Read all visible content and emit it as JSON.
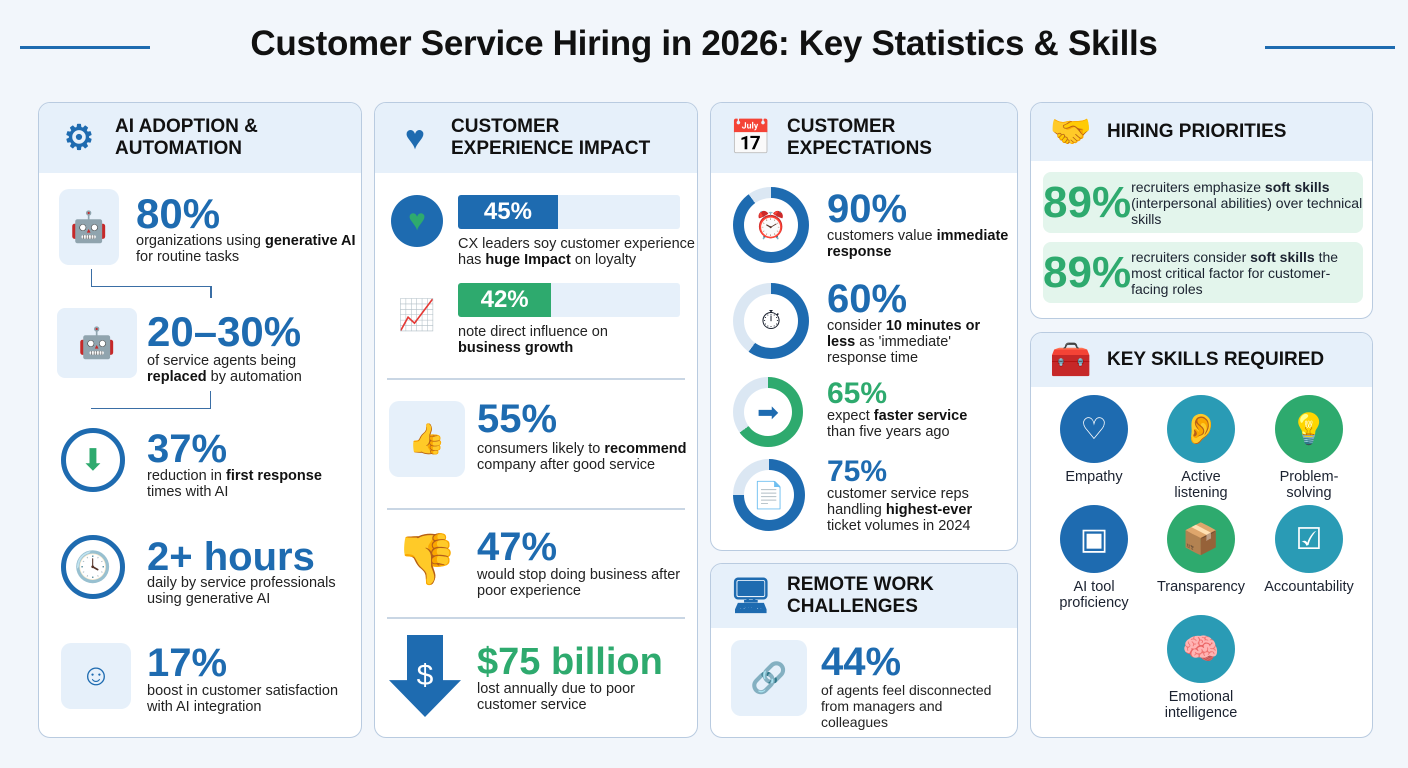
{
  "title": "Customer Service Hiring in 2026: Key Statistics & Skills",
  "colors": {
    "blue": "#1e6bb0",
    "green": "#2eaa6e",
    "header_bg": "#e6f0fa",
    "page_bg": "#f2f6fb"
  },
  "ai": {
    "heading_1": "AI ADOPTION &",
    "heading_2": "AUTOMATION",
    "icon": "brain-gear-icon",
    "stats": [
      {
        "value": "80%",
        "desc": [
          {
            "t": "organizations using "
          },
          {
            "t": "generative AI",
            "b": 1
          },
          {
            "t": " for routine tasks"
          }
        ],
        "icon": "robot-icon"
      },
      {
        "value": "20–30%",
        "desc": [
          {
            "t": "of service agents being "
          },
          {
            "t": "replaced",
            "b": 1
          },
          {
            "t": " by automation"
          }
        ],
        "icon": "robot-vs-agent-icon"
      },
      {
        "value": "37%",
        "desc": [
          {
            "t": "reduction in "
          },
          {
            "t": "first response",
            "b": 1
          },
          {
            "t": " times with AI"
          }
        ],
        "icon": "clock-down-icon"
      },
      {
        "value": "2+ hours",
        "desc": [
          {
            "t": "daily by service professionals using generative AI"
          }
        ],
        "icon": "clock-icon",
        "badge": "2+"
      },
      {
        "value": "17%",
        "desc": [
          {
            "t": "boost in customer satisfaction with AI integration"
          }
        ],
        "icon": "happy-customer-icon"
      }
    ]
  },
  "cx": {
    "heading_1": "CUSTOMER",
    "heading_2": "EXPERIENCE IMPACT",
    "icon": "heart-trend-icon",
    "bars": [
      {
        "value": "45%",
        "percent": 45,
        "color": "#1e6bb0",
        "desc": [
          {
            "t": "CX leaders soy customer experience has "
          },
          {
            "t": "huge Impact",
            "b": 1
          },
          {
            "t": " on loyalty"
          }
        ],
        "icon": "award-heart-icon"
      },
      {
        "value": "42%",
        "percent": 42,
        "color": "#2eaa6e",
        "desc": [
          {
            "t": "note direct influence on "
          },
          {
            "t": "business growth",
            "b": 1
          }
        ],
        "icon": "growth-chart-icon"
      }
    ],
    "stats": [
      {
        "value": "55%",
        "desc": [
          {
            "t": "consumers likely to "
          },
          {
            "t": "recommend",
            "b": 1
          },
          {
            "t": " company after good service"
          }
        ],
        "icon": "thumbs-up-person-icon"
      },
      {
        "value": "47%",
        "desc": [
          {
            "t": "would stop doing business after poor experience"
          }
        ],
        "icon": "thumbs-down-icon"
      },
      {
        "value": "$75 billion",
        "desc": [
          {
            "t": "lost annually due to poor customer service"
          }
        ],
        "icon": "dollar-down-arrow-icon",
        "symbol": "$"
      }
    ]
  },
  "expect": {
    "heading_1": "CUSTOMER",
    "heading_2": "EXPECTATIONS",
    "icon": "calendar-clock-icon",
    "stats": [
      {
        "value": "90%",
        "percent": 90,
        "desc": [
          {
            "t": "customers value "
          },
          {
            "t": "immediate response",
            "b": 1
          }
        ],
        "icon": "clock-warning-icon"
      },
      {
        "value": "60%",
        "percent": 60,
        "desc": [
          {
            "t": "consider "
          },
          {
            "t": "10 minutes or less",
            "b": 1
          },
          {
            "t": " as 'immediate' response time"
          }
        ],
        "icon": "stopwatch-icon"
      },
      {
        "value": "65%",
        "percent": 65,
        "desc": [
          {
            "t": "expect "
          },
          {
            "t": "faster service",
            "b": 1
          },
          {
            "t": " than five years ago"
          }
        ],
        "icon": "fast-arrow-icon"
      },
      {
        "value": "75%",
        "percent": 75,
        "desc": [
          {
            "t": "customer service reps handling "
          },
          {
            "t": "highest-ever",
            "b": 1
          },
          {
            "t": " ticket volumes in 2024"
          }
        ],
        "icon": "document-up-icon"
      }
    ]
  },
  "remote": {
    "heading_1": "REMOTE WORK",
    "heading_2": "CHALLENGES",
    "icon": "video-meeting-icon",
    "stat": {
      "value": "44%",
      "desc": [
        {
          "t": "of agents feel disconnected from managers and colleagues"
        }
      ],
      "icon": "broken-link-agent-icon"
    }
  },
  "hiring": {
    "heading": "HIRING PRIORITIES",
    "icon": "handshake-icon",
    "items": [
      {
        "value": "89%",
        "desc": [
          {
            "t": "recruiters emphasize "
          },
          {
            "t": "soft skills",
            "b": 1
          },
          {
            "t": " (interpersonal abilities) over technical skills"
          }
        ]
      },
      {
        "value": "89%",
        "desc": [
          {
            "t": "recruiters consider "
          },
          {
            "t": "soft skills",
            "b": 1
          },
          {
            "t": " the most critical factor for customer-facing roles"
          }
        ]
      }
    ]
  },
  "skills": {
    "heading": "KEY SKILLS REQUIRED",
    "icon": "toolbox-icon",
    "items": [
      {
        "label": "Empathy",
        "icon": "hands-heart-icon",
        "color": "#1e6bb0"
      },
      {
        "label": "Active listening",
        "icon": "ear-icon",
        "color": "#2a9bb5"
      },
      {
        "label": "Problem-solving",
        "icon": "lightbulb-gear-icon",
        "color": "#2eaa6e"
      },
      {
        "label": "AI tool proficiency",
        "icon": "chip-icon",
        "color": "#1e6bb0"
      },
      {
        "label": "Transparency",
        "icon": "open-box-icon",
        "color": "#2eaa6e"
      },
      {
        "label": "Accountability",
        "icon": "person-checklist-icon",
        "color": "#2a9bb5"
      },
      {
        "label": "Emotional intelligence",
        "icon": "brain-pulse-icon",
        "color": "#2a9bb5"
      }
    ]
  }
}
